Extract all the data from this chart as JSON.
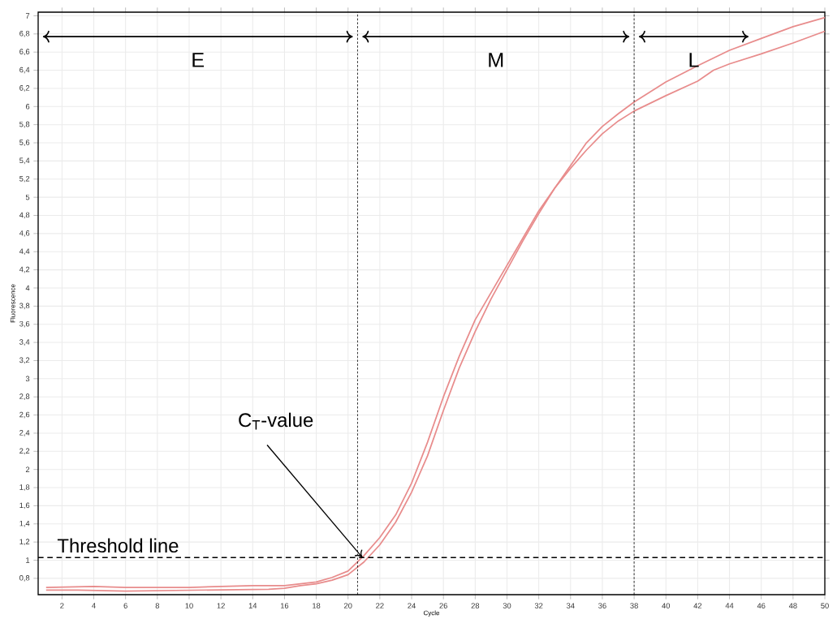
{
  "chart_data": {
    "type": "line",
    "xlabel": "Cycle",
    "ylabel": "Fluorescence",
    "xlim": [
      0.5,
      50
    ],
    "ylim": [
      0.62,
      7.04
    ],
    "xticks": [
      2,
      4,
      6,
      8,
      10,
      12,
      14,
      16,
      18,
      20,
      22,
      24,
      26,
      28,
      30,
      32,
      34,
      36,
      38,
      40,
      42,
      44,
      46,
      48,
      50
    ],
    "yticks": [
      {
        "value": 0.8,
        "label": "0,8"
      },
      1,
      {
        "value": 1.2,
        "label": "1,2"
      },
      {
        "value": 1.4,
        "label": "1,4"
      },
      {
        "value": 1.6,
        "label": "1,6"
      },
      {
        "value": 1.8,
        "label": "1,8"
      },
      2,
      {
        "value": 2.2,
        "label": "2,2"
      },
      {
        "value": 2.4,
        "label": "2,4"
      },
      {
        "value": 2.6,
        "label": "2,6"
      },
      {
        "value": 2.8,
        "label": "2,8"
      },
      3,
      {
        "value": 3.2,
        "label": "3,2"
      },
      {
        "value": 3.4,
        "label": "3,4"
      },
      {
        "value": 3.6,
        "label": "3,6"
      },
      {
        "value": 3.8,
        "label": "3,8"
      },
      4,
      {
        "value": 4.2,
        "label": "4,2"
      },
      {
        "value": 4.4,
        "label": "4,4"
      },
      {
        "value": 4.6,
        "label": "4,6"
      },
      {
        "value": 4.8,
        "label": "4,8"
      },
      5,
      {
        "value": 5.2,
        "label": "5,2"
      },
      {
        "value": 5.4,
        "label": "5,4"
      },
      {
        "value": 5.6,
        "label": "5,6"
      },
      {
        "value": 5.8,
        "label": "5,8"
      },
      6,
      {
        "value": 6.2,
        "label": "6,2"
      },
      {
        "value": 6.4,
        "label": "6,4"
      },
      {
        "value": 6.6,
        "label": "6,6"
      },
      {
        "value": 6.8,
        "label": "6,8"
      },
      7
    ],
    "grid": true,
    "marker": "none",
    "line_style": "solid",
    "series": [
      {
        "color": "#e88c8c",
        "x": [
          1,
          4,
          6,
          10,
          14,
          16,
          17,
          18,
          19,
          20,
          21,
          22,
          23,
          24,
          25,
          26,
          27,
          28,
          29,
          30,
          31,
          32,
          33,
          34,
          35,
          36,
          37,
          38,
          40,
          42,
          44,
          46,
          48,
          50
        ],
        "values": [
          0.7,
          0.71,
          0.7,
          0.7,
          0.72,
          0.72,
          0.74,
          0.76,
          0.81,
          0.88,
          1.05,
          1.25,
          1.5,
          1.85,
          2.3,
          2.8,
          3.25,
          3.65,
          3.95,
          4.25,
          4.55,
          4.85,
          5.1,
          5.35,
          5.6,
          5.78,
          5.92,
          6.05,
          6.27,
          6.45,
          6.62,
          6.75,
          6.88,
          6.98
        ]
      },
      {
        "color": "#e88c8c",
        "x": [
          1,
          3,
          6,
          15,
          16,
          17,
          18,
          19,
          20,
          21,
          22,
          23,
          24,
          25,
          26,
          27,
          28,
          29,
          30,
          31,
          32,
          33,
          34,
          35,
          36,
          37,
          38,
          40,
          42,
          43,
          44,
          46,
          48,
          50
        ],
        "values": [
          0.67,
          0.67,
          0.66,
          0.68,
          0.69,
          0.72,
          0.74,
          0.78,
          0.84,
          0.98,
          1.17,
          1.42,
          1.75,
          2.15,
          2.65,
          3.12,
          3.52,
          3.88,
          4.2,
          4.52,
          4.82,
          5.1,
          5.32,
          5.52,
          5.7,
          5.84,
          5.95,
          6.12,
          6.28,
          6.4,
          6.47,
          6.58,
          6.7,
          6.83
        ]
      }
    ],
    "ref_lines": [
      {
        "axis": "x",
        "value": 20.6,
        "line_style": "dotted"
      },
      {
        "axis": "x",
        "value": 38.0,
        "line_style": "dotted"
      },
      {
        "axis": "y",
        "value": 1.03,
        "label": "Threshold line",
        "line_style": "dashed"
      }
    ],
    "annotations": [
      "E",
      "M",
      "L",
      {
        "text": "C$_{T}$-value",
        "x": 20.9,
        "y": 1.03
      }
    ]
  }
}
